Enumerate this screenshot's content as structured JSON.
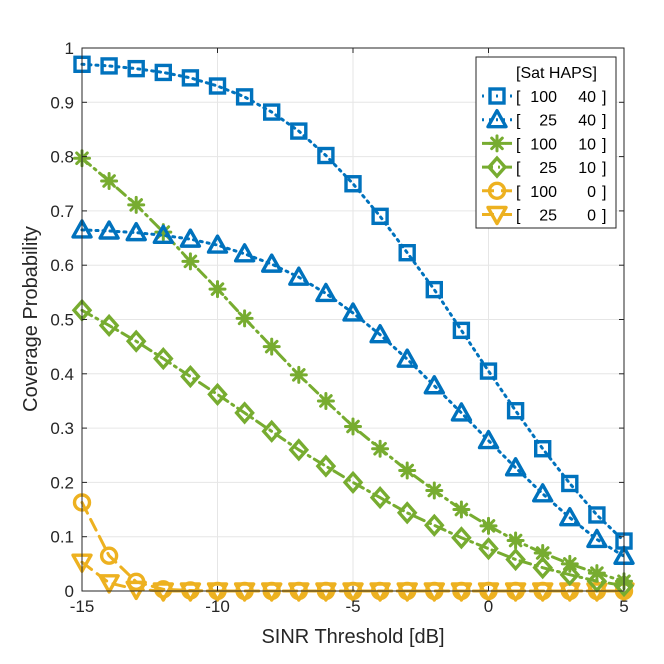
{
  "chart_data": {
    "type": "line",
    "title": "",
    "xlabel": "SINR Threshold [dB]",
    "ylabel": "Coverage Probability",
    "xlim": [
      -15,
      5
    ],
    "ylim": [
      0,
      1
    ],
    "xticks": [
      -15,
      -10,
      -5,
      0,
      5
    ],
    "yticks": [
      0,
      0.1,
      0.2,
      0.3,
      0.4,
      0.5,
      0.6,
      0.7,
      0.8,
      0.9,
      1
    ],
    "ytick_labels": [
      "0",
      "0.1",
      "0.2",
      "0.3",
      "0.4",
      "0.5",
      "0.6",
      "0.7",
      "0.8",
      "0.9",
      "1"
    ],
    "xtick_labels": [
      "-15",
      "-10",
      "-5",
      "0",
      "5"
    ],
    "grid": true,
    "legend_title": "[Sat HAPS]",
    "legend_position": "top-right",
    "x": [
      -15,
      -14,
      -13,
      -12,
      -11,
      -10,
      -9,
      -8,
      -7,
      -6,
      -5,
      -4,
      -3,
      -2,
      -1,
      0,
      1,
      2,
      3,
      4,
      5
    ],
    "series": [
      {
        "name": "[100 40 ]",
        "sat": "100",
        "haps": "40",
        "marker": "square",
        "linestyle": "dotted",
        "color": "#0072BD",
        "values": [
          0.97,
          0.967,
          0.962,
          0.955,
          0.945,
          0.93,
          0.91,
          0.882,
          0.847,
          0.802,
          0.75,
          0.69,
          0.623,
          0.555,
          0.48,
          0.405,
          0.332,
          0.262,
          0.198,
          0.14,
          0.092
        ]
      },
      {
        "name": "[ 25 40 ]",
        "sat": "25",
        "haps": "40",
        "marker": "triangle-up",
        "linestyle": "dotted",
        "color": "#0072BD",
        "values": [
          0.665,
          0.663,
          0.66,
          0.655,
          0.648,
          0.637,
          0.621,
          0.602,
          0.578,
          0.548,
          0.512,
          0.472,
          0.427,
          0.378,
          0.328,
          0.277,
          0.227,
          0.179,
          0.135,
          0.095,
          0.064
        ]
      },
      {
        "name": "[100 10 ]",
        "sat": "100",
        "haps": "10",
        "marker": "asterisk",
        "linestyle": "dashdot",
        "color": "#77AC30",
        "values": [
          0.797,
          0.755,
          0.711,
          0.661,
          0.607,
          0.556,
          0.502,
          0.45,
          0.398,
          0.35,
          0.303,
          0.262,
          0.222,
          0.185,
          0.15,
          0.12,
          0.093,
          0.07,
          0.05,
          0.033,
          0.018
        ]
      },
      {
        "name": "[ 25 10 ]",
        "sat": "25",
        "haps": "10",
        "marker": "diamond",
        "linestyle": "dashdot",
        "color": "#77AC30",
        "values": [
          0.517,
          0.489,
          0.46,
          0.428,
          0.395,
          0.362,
          0.328,
          0.294,
          0.26,
          0.23,
          0.2,
          0.172,
          0.144,
          0.121,
          0.098,
          0.078,
          0.058,
          0.043,
          0.03,
          0.018,
          0.01
        ]
      },
      {
        "name": "[100 0 ]",
        "sat": "100",
        "haps": "0",
        "marker": "circle",
        "linestyle": "dashed",
        "color": "#EDB120",
        "values": [
          0.163,
          0.065,
          0.017,
          0.003,
          0.001,
          0.0,
          0.0,
          0.0,
          0.0,
          0.0,
          0.0,
          0.0,
          0.0,
          0.0,
          0.0,
          0.0,
          0.0,
          0.0,
          0.0,
          0.0,
          0.0
        ]
      },
      {
        "name": "[ 25 0 ]",
        "sat": "25",
        "haps": "0",
        "marker": "triangle-down",
        "linestyle": "dashed",
        "color": "#EDB120",
        "values": [
          0.053,
          0.015,
          0.003,
          0.0,
          0.0,
          0.0,
          0.0,
          0.0,
          0.0,
          0.0,
          0.0,
          0.0,
          0.0,
          0.0,
          0.0,
          0.0,
          0.0,
          0.0,
          0.0,
          0.0,
          0.0
        ]
      }
    ]
  }
}
